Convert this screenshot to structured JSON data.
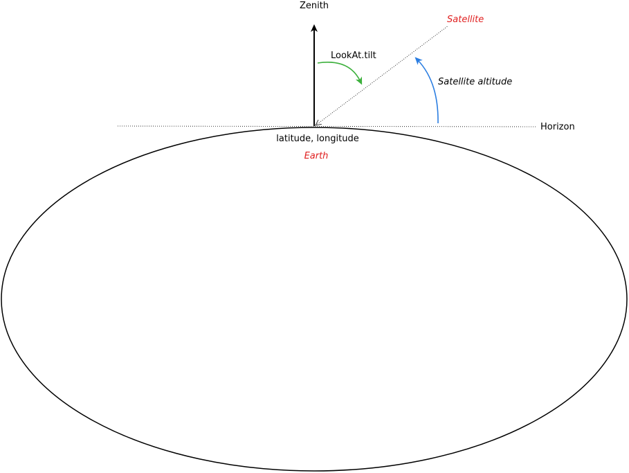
{
  "labels": {
    "zenith": "Zenith",
    "satellite": "Satellite",
    "lookat_tilt": "LookAt.tilt",
    "satellite_altitude": "Satellite altitude",
    "horizon": "Horizon",
    "position": "latitude, longitude",
    "earth": "Earth"
  },
  "colors": {
    "earth_label": "#e02020",
    "satellite_label": "#e02020",
    "tilt_arc": "#3cb03c",
    "altitude_arc": "#2a7de1",
    "lines": "#000000",
    "background": "#ffffff"
  }
}
